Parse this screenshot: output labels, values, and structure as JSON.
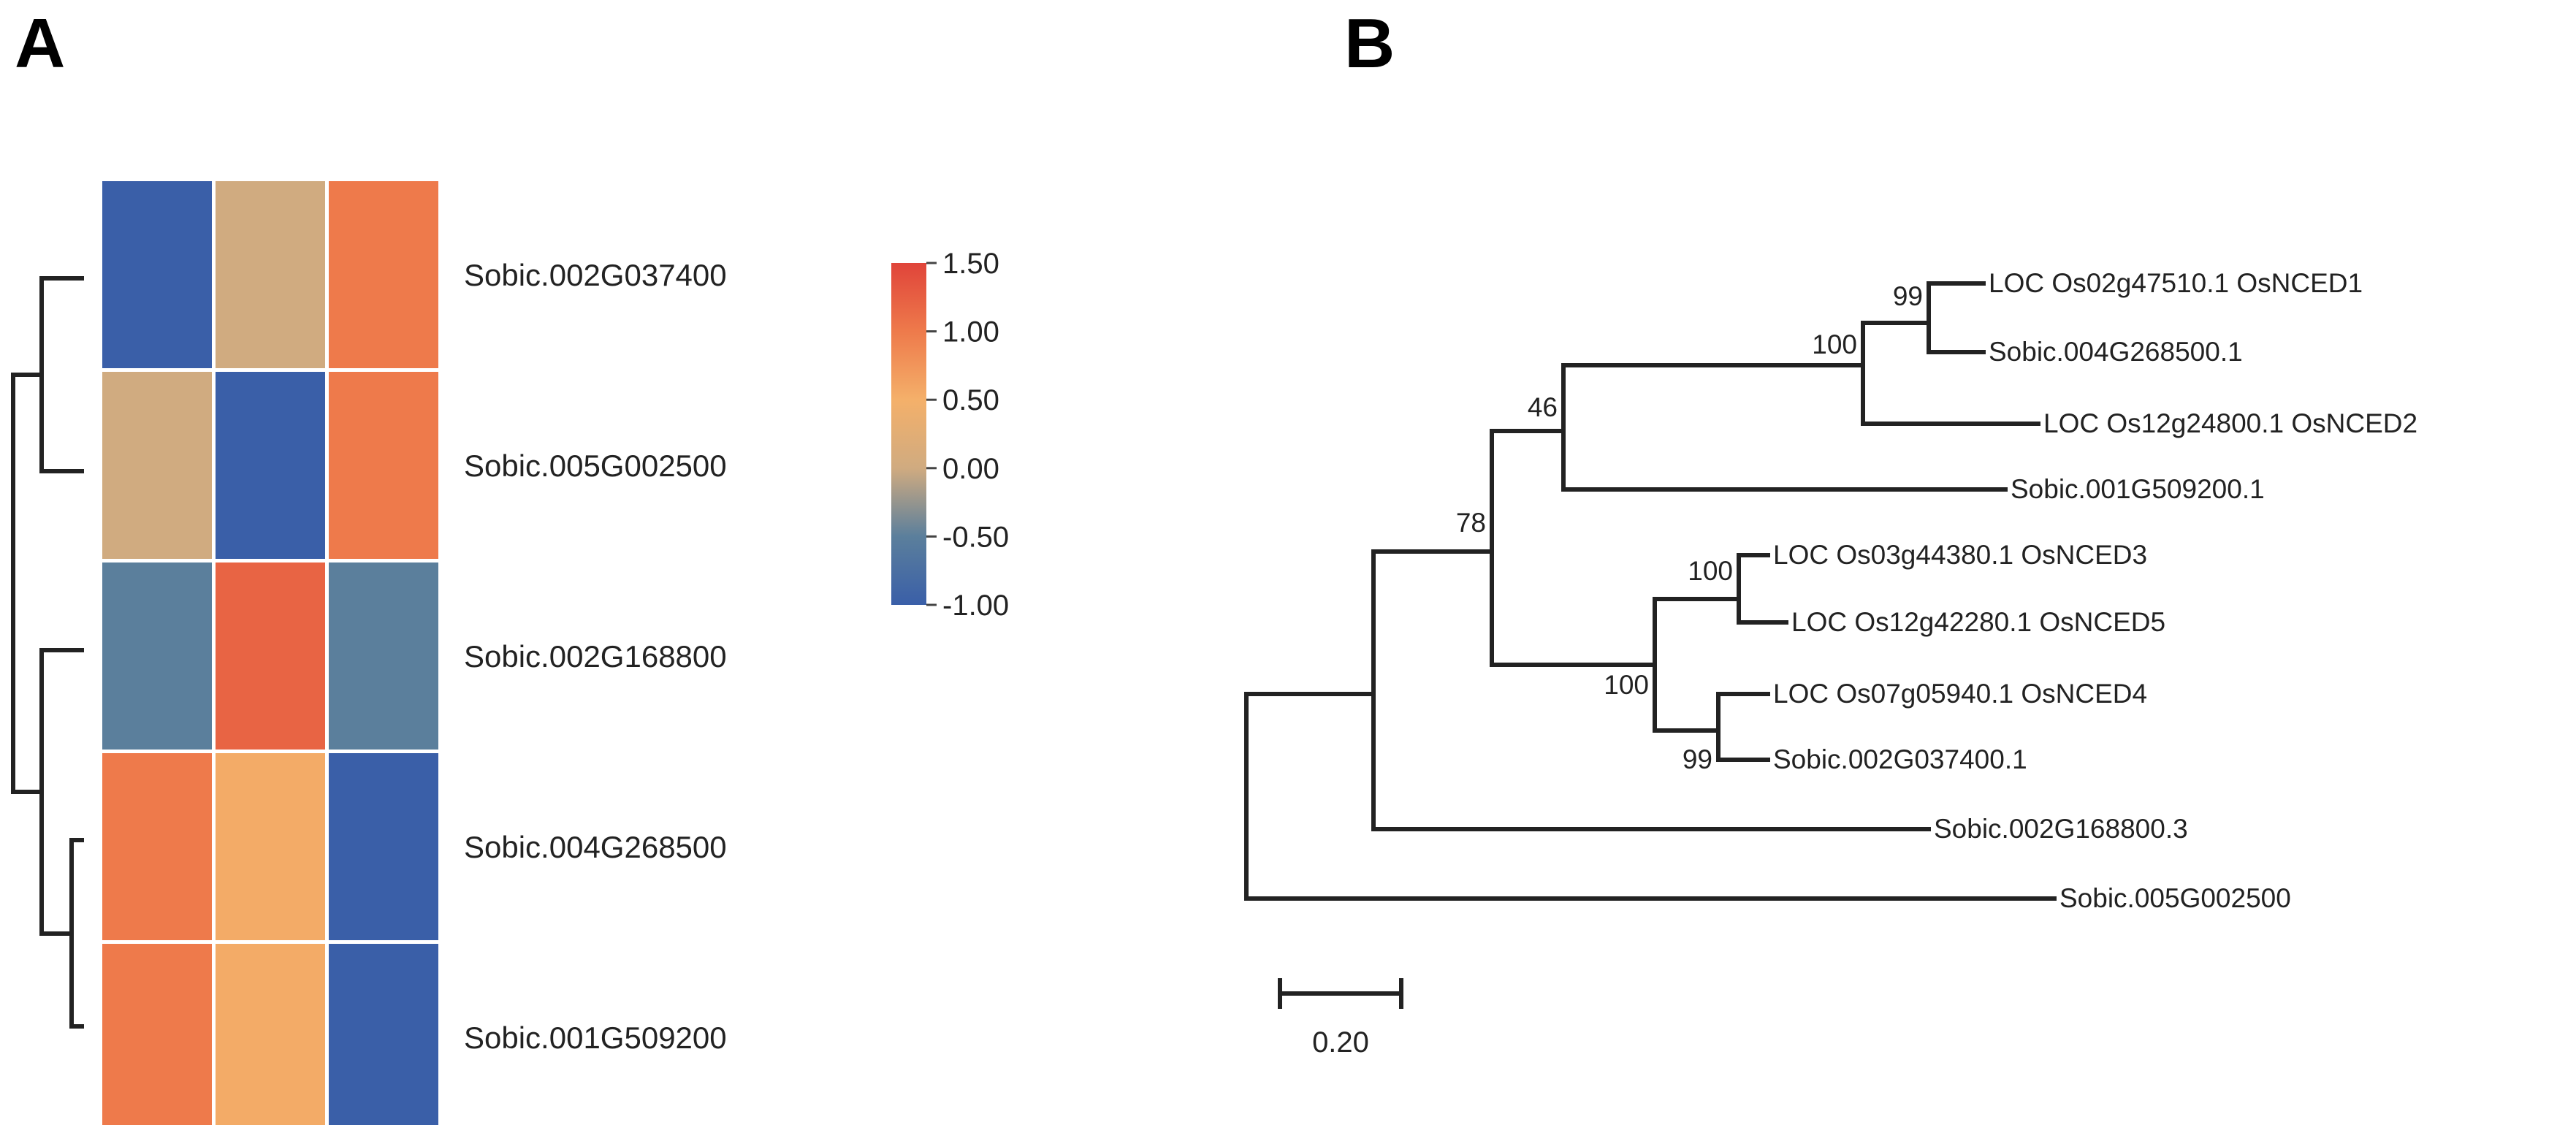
{
  "panels": {
    "a_label": "A",
    "b_label": "B"
  },
  "chart_data": [
    {
      "type": "heatmap",
      "panel": "A",
      "rows": [
        "Sobic.002G037400",
        "Sobic.005G002500",
        "Sobic.002G168800",
        "Sobic.004G268500",
        "Sobic.001G509200"
      ],
      "columns": 3,
      "values": [
        [
          -1.0,
          0.0,
          1.0
        ],
        [
          0.0,
          -1.0,
          1.0
        ],
        [
          -0.5,
          1.2,
          -0.5
        ],
        [
          1.0,
          0.55,
          -1.0
        ],
        [
          1.0,
          0.55,
          -1.0
        ]
      ],
      "colorbar": {
        "min": -1.0,
        "max": 1.5,
        "ticks": [
          "1.50",
          "1.00",
          "0.50",
          "0.00",
          "-0.50",
          "-1.00"
        ],
        "colors": {
          "low": "#3a5fa8",
          "mid": "#d0ab80",
          "high": "#e0443a"
        }
      },
      "row_dendrogram": true
    },
    {
      "type": "phylogenetic-tree",
      "panel": "B",
      "leaves": [
        "LOC Os02g47510.1 OsNCED1",
        "Sobic.004G268500.1",
        "LOC Os12g24800.1 OsNCED2",
        "Sobic.001G509200.1",
        "LOC Os03g44380.1 OsNCED3",
        "LOC Os12g42280.1 OsNCED5",
        "LOC Os07g05940.1 OsNCED4",
        "Sobic.002G037400.1",
        "Sobic.002G168800.3",
        "Sobic.005G002500"
      ],
      "bootstrap": [
        "99",
        "100",
        "46",
        "78",
        "100",
        "100",
        "99"
      ],
      "scale_bar": {
        "value": 0.2,
        "label": "0.20"
      }
    }
  ]
}
